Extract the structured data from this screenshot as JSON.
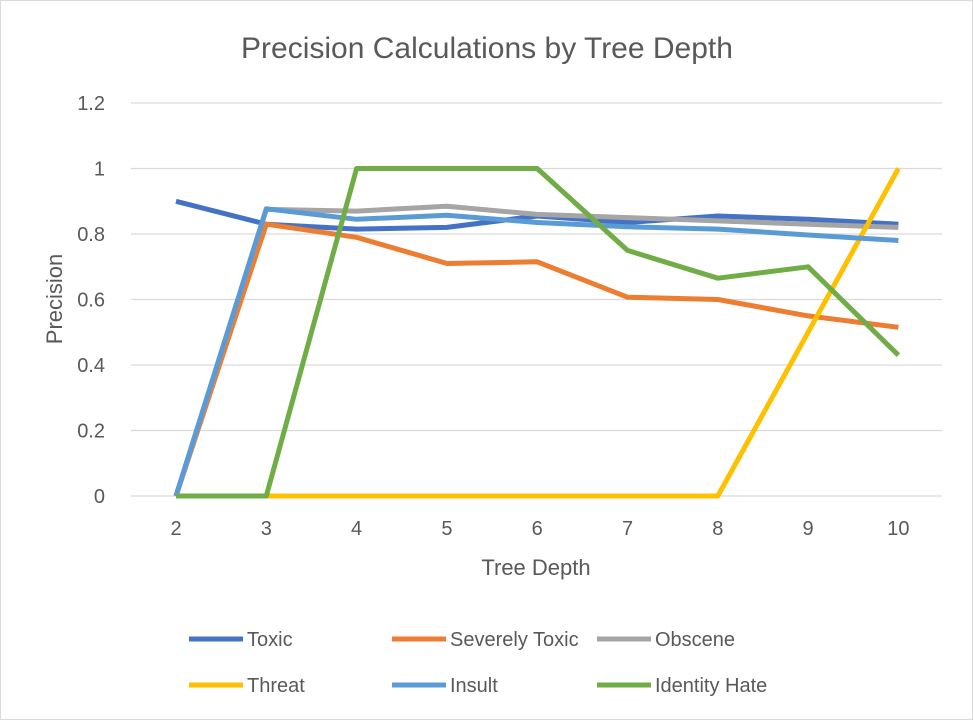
{
  "chart_data": {
    "type": "line",
    "title": "Precision Calculations by Tree Depth",
    "xlabel": "Tree Depth",
    "ylabel": "Precision",
    "categories": [
      "2",
      "3",
      "4",
      "5",
      "6",
      "7",
      "8",
      "9",
      "10"
    ],
    "ylim": [
      0,
      1.2
    ],
    "yticks": [
      "0",
      "0.2",
      "0.4",
      "0.6",
      "0.8",
      "1",
      "1.2"
    ],
    "grid": true,
    "legend_position": "bottom",
    "series": [
      {
        "name": "Toxic",
        "color": "#4472C4",
        "values": [
          0.9,
          0.83,
          0.815,
          0.82,
          0.855,
          0.835,
          0.855,
          0.845,
          0.83
        ]
      },
      {
        "name": "Severely Toxic",
        "color": "#ED7D31",
        "values": [
          0,
          0.83,
          0.79,
          0.71,
          0.715,
          0.607,
          0.6,
          0.55,
          0.515
        ]
      },
      {
        "name": "Obscene",
        "color": "#A5A5A5",
        "values": [
          0,
          0.875,
          0.87,
          0.885,
          0.86,
          0.85,
          0.84,
          0.83,
          0.82
        ]
      },
      {
        "name": "Threat",
        "color": "#FFC000",
        "values": [
          0,
          0,
          0,
          0,
          0,
          0,
          0,
          0.5,
          1.0
        ]
      },
      {
        "name": "Insult",
        "color": "#5B9BD5",
        "values": [
          0,
          0.877,
          0.845,
          0.857,
          0.835,
          0.822,
          0.815,
          0.797,
          0.78
        ]
      },
      {
        "name": "Identity Hate",
        "color": "#70AD47",
        "values": [
          0,
          0,
          1.0,
          1.0,
          1.0,
          0.75,
          0.665,
          0.7,
          0.43
        ]
      }
    ]
  }
}
